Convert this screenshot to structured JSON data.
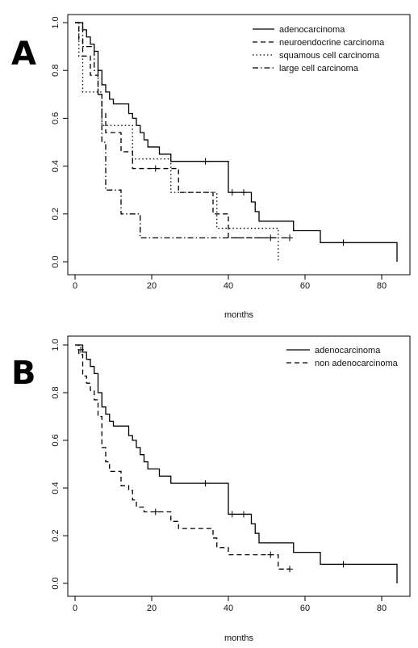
{
  "chart_data": [
    {
      "type": "line",
      "panel_label": "A",
      "xlabel": "months",
      "ylabel": "",
      "xlim": [
        0,
        84
      ],
      "ylim": [
        0,
        1
      ],
      "x_ticks": [
        0,
        20,
        40,
        60,
        80
      ],
      "y_ticks": [
        "0.0",
        "0.2",
        "0.4",
        "0.6",
        "0.8",
        "1.0"
      ],
      "grid": false,
      "legend_position": "top-right",
      "series": [
        {
          "name": "adenocarcinoma",
          "dash": "solid",
          "points": [
            [
              0,
              1.0
            ],
            [
              2,
              1.0
            ],
            [
              2,
              0.97
            ],
            [
              3,
              0.97
            ],
            [
              3,
              0.94
            ],
            [
              4,
              0.94
            ],
            [
              4,
              0.91
            ],
            [
              5,
              0.91
            ],
            [
              5,
              0.88
            ],
            [
              6,
              0.88
            ],
            [
              6,
              0.8
            ],
            [
              7,
              0.8
            ],
            [
              7,
              0.74
            ],
            [
              8,
              0.74
            ],
            [
              8,
              0.71
            ],
            [
              9,
              0.71
            ],
            [
              9,
              0.68
            ],
            [
              10,
              0.68
            ],
            [
              10,
              0.66
            ],
            [
              14,
              0.66
            ],
            [
              14,
              0.62
            ],
            [
              15,
              0.62
            ],
            [
              15,
              0.6
            ],
            [
              16,
              0.6
            ],
            [
              16,
              0.57
            ],
            [
              17,
              0.57
            ],
            [
              17,
              0.54
            ],
            [
              18,
              0.54
            ],
            [
              18,
              0.51
            ],
            [
              19,
              0.51
            ],
            [
              19,
              0.48
            ],
            [
              22,
              0.48
            ],
            [
              22,
              0.45
            ],
            [
              25,
              0.45
            ],
            [
              25,
              0.42
            ],
            [
              40,
              0.42
            ],
            [
              40,
              0.29
            ],
            [
              46,
              0.29
            ],
            [
              46,
              0.25
            ],
            [
              47,
              0.25
            ],
            [
              47,
              0.21
            ],
            [
              48,
              0.21
            ],
            [
              48,
              0.17
            ],
            [
              57,
              0.17
            ],
            [
              57,
              0.13
            ],
            [
              64,
              0.13
            ],
            [
              64,
              0.08
            ],
            [
              84,
              0.08
            ],
            [
              84,
              0.0
            ]
          ],
          "censored": [
            [
              34,
              0.42
            ],
            [
              41,
              0.29
            ],
            [
              44,
              0.29
            ],
            [
              70,
              0.08
            ]
          ]
        },
        {
          "name": "neuroendocrine carcinoma",
          "dash": "dashed",
          "points": [
            [
              0,
              1.0
            ],
            [
              1,
              1.0
            ],
            [
              1,
              0.93
            ],
            [
              2,
              0.93
            ],
            [
              2,
              0.86
            ],
            [
              4,
              0.86
            ],
            [
              4,
              0.78
            ],
            [
              6,
              0.78
            ],
            [
              6,
              0.7
            ],
            [
              7,
              0.7
            ],
            [
              7,
              0.62
            ],
            [
              8,
              0.62
            ],
            [
              8,
              0.54
            ],
            [
              12,
              0.54
            ],
            [
              12,
              0.46
            ],
            [
              15,
              0.46
            ],
            [
              15,
              0.39
            ],
            [
              27,
              0.39
            ],
            [
              27,
              0.29
            ],
            [
              36,
              0.29
            ],
            [
              36,
              0.2
            ],
            [
              40,
              0.2
            ],
            [
              40,
              0.1
            ],
            [
              53,
              0.1
            ]
          ],
          "censored": [
            [
              21,
              0.39
            ],
            [
              51,
              0.1
            ]
          ]
        },
        {
          "name": "squamous cell carcinoma",
          "dash": "dotted",
          "points": [
            [
              0,
              1.0
            ],
            [
              1,
              1.0
            ],
            [
              1,
              0.86
            ],
            [
              2,
              0.86
            ],
            [
              2,
              0.71
            ],
            [
              7,
              0.71
            ],
            [
              7,
              0.57
            ],
            [
              15,
              0.57
            ],
            [
              15,
              0.43
            ],
            [
              25,
              0.43
            ],
            [
              25,
              0.29
            ],
            [
              37,
              0.29
            ],
            [
              37,
              0.14
            ],
            [
              53,
              0.14
            ],
            [
              53,
              0.0
            ]
          ],
          "censored": []
        },
        {
          "name": "large cell carcinoma",
          "dash": "dotdash",
          "points": [
            [
              0,
              1.0
            ],
            [
              2,
              1.0
            ],
            [
              2,
              0.9
            ],
            [
              5,
              0.9
            ],
            [
              5,
              0.8
            ],
            [
              6,
              0.8
            ],
            [
              6,
              0.7
            ],
            [
              7,
              0.7
            ],
            [
              7,
              0.5
            ],
            [
              8,
              0.5
            ],
            [
              8,
              0.3
            ],
            [
              12,
              0.3
            ],
            [
              12,
              0.2
            ],
            [
              17,
              0.2
            ],
            [
              17,
              0.1
            ],
            [
              56,
              0.1
            ]
          ],
          "censored": [
            [
              56,
              0.1
            ]
          ]
        }
      ]
    },
    {
      "type": "line",
      "panel_label": "B",
      "xlabel": "months",
      "ylabel": "",
      "xlim": [
        0,
        84
      ],
      "ylim": [
        0,
        1
      ],
      "x_ticks": [
        0,
        20,
        40,
        60,
        80
      ],
      "y_ticks": [
        "0.0",
        "0.2",
        "0.4",
        "0.6",
        "0.8",
        "1.0"
      ],
      "grid": false,
      "legend_position": "top-right",
      "series": [
        {
          "name": "adenocarcinoma",
          "dash": "solid",
          "points": [
            [
              0,
              1.0
            ],
            [
              2,
              1.0
            ],
            [
              2,
              0.97
            ],
            [
              3,
              0.97
            ],
            [
              3,
              0.94
            ],
            [
              4,
              0.94
            ],
            [
              4,
              0.91
            ],
            [
              5,
              0.91
            ],
            [
              5,
              0.88
            ],
            [
              6,
              0.88
            ],
            [
              6,
              0.8
            ],
            [
              7,
              0.8
            ],
            [
              7,
              0.74
            ],
            [
              8,
              0.74
            ],
            [
              8,
              0.71
            ],
            [
              9,
              0.71
            ],
            [
              9,
              0.68
            ],
            [
              10,
              0.68
            ],
            [
              10,
              0.66
            ],
            [
              14,
              0.66
            ],
            [
              14,
              0.62
            ],
            [
              15,
              0.62
            ],
            [
              15,
              0.6
            ],
            [
              16,
              0.6
            ],
            [
              16,
              0.57
            ],
            [
              17,
              0.57
            ],
            [
              17,
              0.54
            ],
            [
              18,
              0.54
            ],
            [
              18,
              0.51
            ],
            [
              19,
              0.51
            ],
            [
              19,
              0.48
            ],
            [
              22,
              0.48
            ],
            [
              22,
              0.45
            ],
            [
              25,
              0.45
            ],
            [
              25,
              0.42
            ],
            [
              40,
              0.42
            ],
            [
              40,
              0.29
            ],
            [
              46,
              0.29
            ],
            [
              46,
              0.25
            ],
            [
              47,
              0.25
            ],
            [
              47,
              0.21
            ],
            [
              48,
              0.21
            ],
            [
              48,
              0.17
            ],
            [
              57,
              0.17
            ],
            [
              57,
              0.13
            ],
            [
              64,
              0.13
            ],
            [
              64,
              0.08
            ],
            [
              84,
              0.08
            ],
            [
              84,
              0.0
            ]
          ],
          "censored": [
            [
              1.5,
              0.98
            ],
            [
              34,
              0.42
            ],
            [
              41,
              0.29
            ],
            [
              44,
              0.29
            ],
            [
              70,
              0.08
            ]
          ]
        },
        {
          "name": "non adenocarcinoma",
          "dash": "dashed",
          "points": [
            [
              0,
              1.0
            ],
            [
              1,
              1.0
            ],
            [
              1,
              0.96
            ],
            [
              2,
              0.96
            ],
            [
              2,
              0.87
            ],
            [
              3,
              0.87
            ],
            [
              3,
              0.84
            ],
            [
              4,
              0.84
            ],
            [
              4,
              0.81
            ],
            [
              5,
              0.81
            ],
            [
              5,
              0.77
            ],
            [
              6,
              0.77
            ],
            [
              6,
              0.7
            ],
            [
              7,
              0.7
            ],
            [
              7,
              0.57
            ],
            [
              8,
              0.57
            ],
            [
              8,
              0.51
            ],
            [
              9,
              0.51
            ],
            [
              9,
              0.47
            ],
            [
              12,
              0.47
            ],
            [
              12,
              0.41
            ],
            [
              14,
              0.41
            ],
            [
              14,
              0.39
            ],
            [
              15,
              0.39
            ],
            [
              15,
              0.35
            ],
            [
              16,
              0.35
            ],
            [
              16,
              0.32
            ],
            [
              18,
              0.32
            ],
            [
              18,
              0.3
            ],
            [
              25,
              0.3
            ],
            [
              25,
              0.26
            ],
            [
              27,
              0.26
            ],
            [
              27,
              0.23
            ],
            [
              36,
              0.23
            ],
            [
              36,
              0.19
            ],
            [
              37,
              0.19
            ],
            [
              37,
              0.15
            ],
            [
              40,
              0.15
            ],
            [
              40,
              0.12
            ],
            [
              53,
              0.12
            ],
            [
              53,
              0.06
            ],
            [
              56,
              0.06
            ]
          ],
          "censored": [
            [
              21,
              0.3
            ],
            [
              51,
              0.12
            ],
            [
              56,
              0.06
            ]
          ]
        }
      ]
    }
  ]
}
